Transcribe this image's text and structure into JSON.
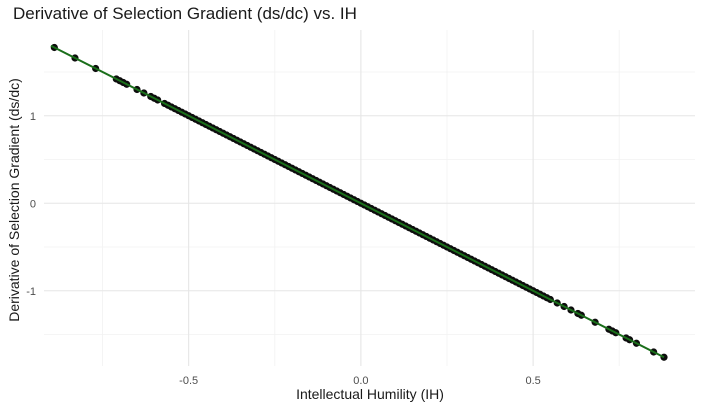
{
  "chart_data": {
    "type": "scatter",
    "title": "Derivative of Selection Gradient (ds/dc) vs. IH",
    "xlabel": "Intellectual Humility (IH)",
    "ylabel": "Derivative of Selection Gradient (ds/dc)",
    "xlim": [
      -0.92,
      0.97
    ],
    "ylim": [
      -1.86,
      1.98
    ],
    "x_ticks": [
      -0.5,
      0.0,
      0.5
    ],
    "x_tick_labels": [
      "-0.5",
      "0.0",
      "0.5"
    ],
    "y_ticks": [
      -1,
      0,
      1
    ],
    "y_tick_labels": [
      "-1",
      "0",
      "1"
    ],
    "grid": true,
    "legend": "none",
    "fit_line": {
      "slope": -2.0,
      "intercept": 0.0,
      "x_range": [
        -0.9,
        0.88
      ],
      "color": "#1a6e1a"
    },
    "point_color": "#0d0d0d",
    "series": [
      {
        "x": [
          -0.89,
          -0.83,
          -0.77,
          -0.71,
          -0.7,
          -0.69,
          -0.68,
          -0.65,
          -0.63,
          -0.61,
          -0.6,
          -0.59,
          -0.57,
          -0.56,
          -0.55,
          -0.54,
          -0.53,
          -0.52,
          -0.51,
          -0.5,
          -0.49,
          -0.48,
          -0.47,
          -0.46,
          -0.45,
          -0.44,
          -0.43,
          -0.42,
          -0.41,
          -0.4,
          -0.39,
          -0.38,
          -0.37,
          -0.36,
          -0.35,
          -0.34,
          -0.33,
          -0.32,
          -0.31,
          -0.3,
          -0.29,
          -0.28,
          -0.27,
          -0.26,
          -0.25,
          -0.24,
          -0.23,
          -0.22,
          -0.21,
          -0.2,
          -0.19,
          -0.18,
          -0.17,
          -0.16,
          -0.15,
          -0.14,
          -0.13,
          -0.12,
          -0.11,
          -0.1,
          -0.09,
          -0.08,
          -0.07,
          -0.06,
          -0.05,
          -0.04,
          -0.03,
          -0.02,
          -0.01,
          0.0,
          0.01,
          0.02,
          0.03,
          0.04,
          0.05,
          0.06,
          0.07,
          0.08,
          0.09,
          0.1,
          0.11,
          0.12,
          0.13,
          0.14,
          0.15,
          0.16,
          0.17,
          0.18,
          0.19,
          0.2,
          0.21,
          0.22,
          0.23,
          0.24,
          0.25,
          0.26,
          0.27,
          0.28,
          0.29,
          0.3,
          0.31,
          0.32,
          0.33,
          0.34,
          0.35,
          0.36,
          0.37,
          0.38,
          0.39,
          0.4,
          0.41,
          0.42,
          0.43,
          0.44,
          0.45,
          0.46,
          0.47,
          0.48,
          0.49,
          0.5,
          0.51,
          0.52,
          0.53,
          0.54,
          0.55,
          0.57,
          0.59,
          0.61,
          0.63,
          0.64,
          0.68,
          0.72,
          0.73,
          0.74,
          0.77,
          0.78,
          0.8,
          0.85,
          0.88
        ],
        "y": [
          1.78,
          1.66,
          1.54,
          1.42,
          1.4,
          1.38,
          1.36,
          1.3,
          1.26,
          1.22,
          1.2,
          1.18,
          1.14,
          1.12,
          1.1,
          1.08,
          1.06,
          1.04,
          1.02,
          1.0,
          0.98,
          0.96,
          0.94,
          0.92,
          0.9,
          0.88,
          0.86,
          0.84,
          0.82,
          0.8,
          0.78,
          0.76,
          0.74,
          0.72,
          0.7,
          0.68,
          0.66,
          0.64,
          0.62,
          0.6,
          0.58,
          0.56,
          0.54,
          0.52,
          0.5,
          0.48,
          0.46,
          0.44,
          0.42,
          0.4,
          0.38,
          0.36,
          0.34,
          0.32,
          0.3,
          0.28,
          0.26,
          0.24,
          0.22,
          0.2,
          0.18,
          0.16,
          0.14,
          0.12,
          0.1,
          0.08,
          0.06,
          0.04,
          0.02,
          0.0,
          -0.02,
          -0.04,
          -0.06,
          -0.08,
          -0.1,
          -0.12,
          -0.14,
          -0.16,
          -0.18,
          -0.2,
          -0.22,
          -0.24,
          -0.26,
          -0.28,
          -0.3,
          -0.32,
          -0.34,
          -0.36,
          -0.38,
          -0.4,
          -0.42,
          -0.44,
          -0.46,
          -0.48,
          -0.5,
          -0.52,
          -0.54,
          -0.56,
          -0.58,
          -0.6,
          -0.62,
          -0.64,
          -0.66,
          -0.68,
          -0.7,
          -0.72,
          -0.74,
          -0.76,
          -0.78,
          -0.8,
          -0.82,
          -0.84,
          -0.86,
          -0.88,
          -0.9,
          -0.92,
          -0.94,
          -0.96,
          -0.98,
          -1.0,
          -1.02,
          -1.04,
          -1.06,
          -1.08,
          -1.1,
          -1.14,
          -1.18,
          -1.22,
          -1.26,
          -1.28,
          -1.36,
          -1.44,
          -1.46,
          -1.48,
          -1.54,
          -1.56,
          -1.6,
          -1.7,
          -1.76
        ]
      }
    ]
  }
}
